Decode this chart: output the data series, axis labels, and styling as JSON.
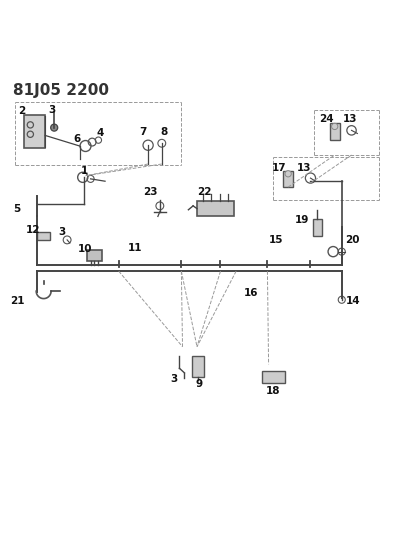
{
  "title": "81J05 2200",
  "bg_color": "#ffffff",
  "line_color": "#333333",
  "title_fontsize": 11,
  "label_fontsize": 7.5,
  "figsize": [
    3.94,
    5.33
  ],
  "dpi": 100
}
